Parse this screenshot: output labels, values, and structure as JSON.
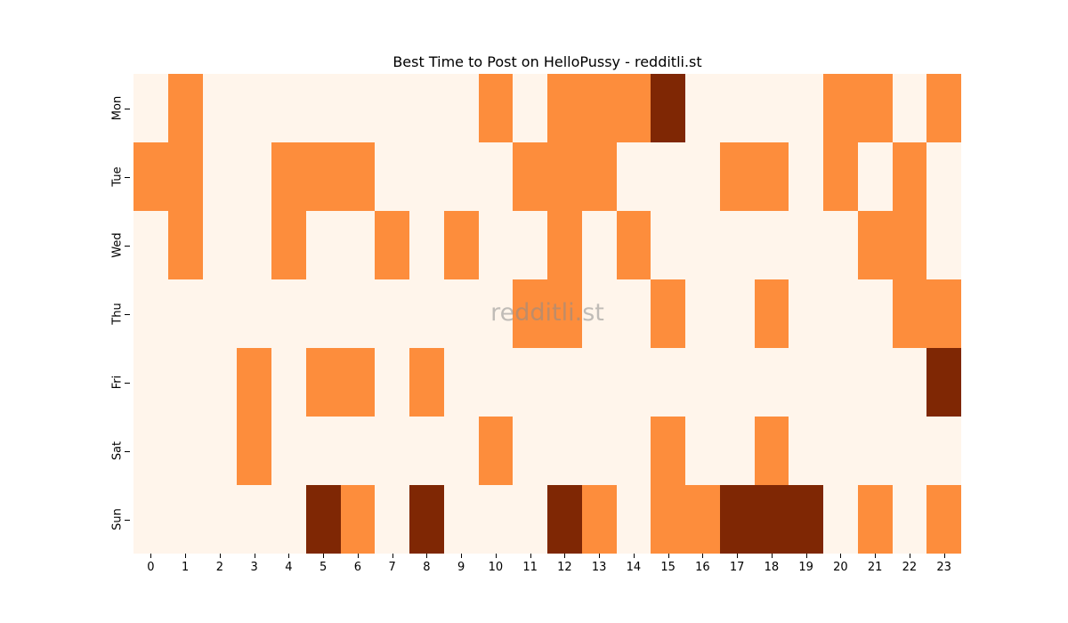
{
  "chart_data": {
    "type": "heatmap",
    "title": "Best Time to Post on HelloPussy - redditli.st",
    "xlabel": "",
    "ylabel": "",
    "x": [
      "0",
      "1",
      "2",
      "3",
      "4",
      "5",
      "6",
      "7",
      "8",
      "9",
      "10",
      "11",
      "12",
      "13",
      "14",
      "15",
      "16",
      "17",
      "18",
      "19",
      "20",
      "21",
      "22",
      "23"
    ],
    "y": [
      "Mon",
      "Tue",
      "Wed",
      "Thu",
      "Fri",
      "Sat",
      "Sun"
    ],
    "values": [
      [
        0,
        1,
        0,
        0,
        0,
        0,
        0,
        0,
        0,
        0,
        1,
        0,
        1,
        1,
        1,
        2,
        0,
        0,
        0,
        0,
        1,
        1,
        0,
        1
      ],
      [
        1,
        1,
        0,
        0,
        1,
        1,
        1,
        0,
        0,
        0,
        0,
        1,
        1,
        1,
        0,
        0,
        0,
        1,
        1,
        0,
        1,
        0,
        1,
        0
      ],
      [
        0,
        1,
        0,
        0,
        1,
        0,
        0,
        1,
        0,
        1,
        0,
        0,
        1,
        0,
        1,
        0,
        0,
        0,
        0,
        0,
        0,
        1,
        1,
        0
      ],
      [
        0,
        0,
        0,
        0,
        0,
        0,
        0,
        0,
        0,
        0,
        0,
        1,
        1,
        0,
        0,
        1,
        0,
        0,
        1,
        0,
        0,
        0,
        1,
        1
      ],
      [
        0,
        0,
        0,
        1,
        0,
        1,
        1,
        0,
        1,
        0,
        0,
        0,
        0,
        0,
        0,
        0,
        0,
        0,
        0,
        0,
        0,
        0,
        0,
        2
      ],
      [
        0,
        0,
        0,
        1,
        0,
        0,
        0,
        0,
        0,
        0,
        1,
        0,
        0,
        0,
        0,
        1,
        0,
        0,
        1,
        0,
        0,
        0,
        0,
        0
      ],
      [
        0,
        0,
        0,
        0,
        0,
        2,
        1,
        0,
        2,
        0,
        0,
        0,
        2,
        1,
        0,
        1,
        1,
        2,
        2,
        2,
        0,
        1,
        0,
        1
      ]
    ],
    "colormap": "Oranges",
    "value_colors": {
      "0": "#fff5eb",
      "1": "#fd8d3c",
      "2": "#7f2704"
    },
    "colorbar": false,
    "grid": false,
    "watermark": "redditli.st"
  }
}
